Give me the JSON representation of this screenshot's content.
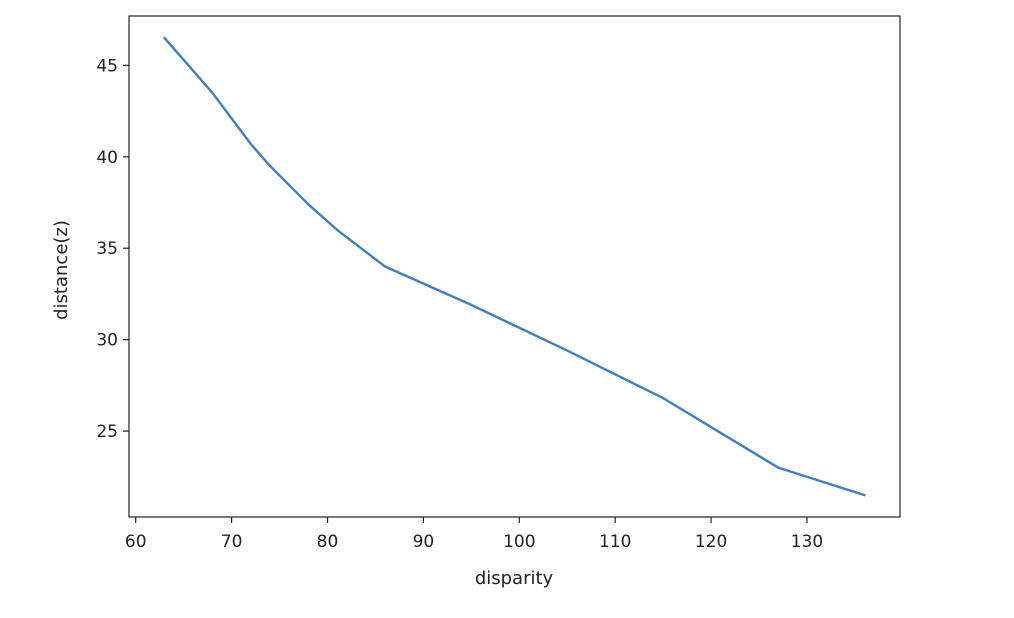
{
  "chart_data": {
    "type": "line",
    "title": "",
    "xlabel": "disparity",
    "ylabel": "distance(z)",
    "xlim": [
      59.3,
      139.7
    ],
    "ylim": [
      20.3,
      47.7
    ],
    "xticks": [
      60,
      70,
      80,
      90,
      100,
      110,
      120,
      130
    ],
    "yticks": [
      25,
      30,
      35,
      40,
      45
    ],
    "xtick_labels": [
      "60",
      "70",
      "80",
      "90",
      "100",
      "110",
      "120",
      "130"
    ],
    "ytick_labels": [
      "25",
      "30",
      "35",
      "40",
      "45"
    ],
    "grid": false,
    "series": [
      {
        "color": "#3f7fbf",
        "x": [
          63,
          68,
          72,
          74,
          78,
          81,
          86,
          95,
          105,
          115,
          127,
          136
        ],
        "y": [
          46.5,
          43.5,
          40.7,
          39.5,
          37.4,
          36.0,
          34.0,
          31.9,
          29.4,
          26.8,
          23.0,
          21.5
        ]
      }
    ]
  }
}
